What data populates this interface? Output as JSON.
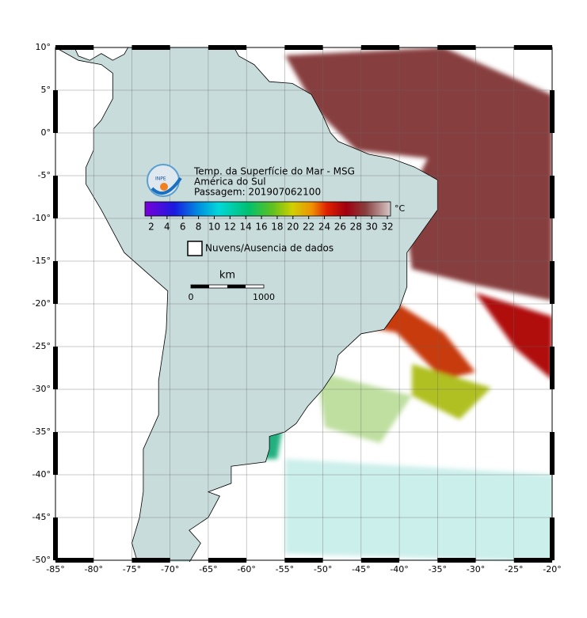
{
  "map": {
    "title": "Temp. da Superfície do Mar - MSG",
    "subtitle": "América do Sul",
    "pass": "Passagem: 201907062100",
    "logo": "INPE",
    "colorbar": {
      "ticks": [
        2,
        4,
        6,
        8,
        10,
        12,
        14,
        16,
        18,
        20,
        22,
        24,
        26,
        28,
        30,
        32
      ],
      "unit": "°C"
    },
    "legend": "Nuvens/Ausencia de dados",
    "scale": {
      "unit": "km",
      "labels": [
        0,
        1000
      ]
    },
    "lat_labels": [
      "10°",
      "5°",
      "0°",
      "-5°",
      "-10°",
      "-15°",
      "-20°",
      "-25°",
      "-30°",
      "-35°",
      "-40°",
      "-45°",
      "-50°"
    ],
    "lon_labels": [
      "-85°",
      "-80°",
      "-75°",
      "-70°",
      "-65°",
      "-60°",
      "-55°",
      "-50°",
      "-45°",
      "-40°",
      "-35°",
      "-30°",
      "-25°",
      "-20°"
    ]
  }
}
